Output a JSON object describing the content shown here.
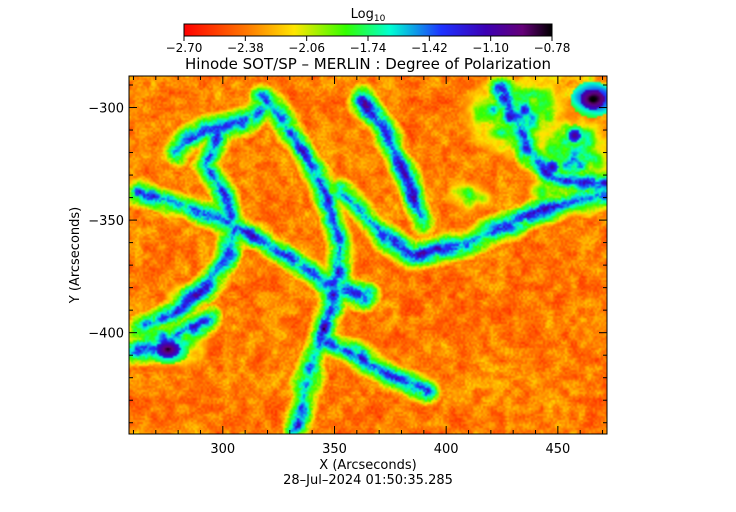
{
  "chart_data": {
    "type": "heatmap",
    "title": "Hinode SOT/SP – MERLIN : Degree of Polarization",
    "colorbar": {
      "label_base": "Log",
      "label_sub": "10",
      "ticks": [
        "−2.70",
        "−2.38",
        "−2.06",
        "−1.74",
        "−1.42",
        "−1.10",
        "−0.78"
      ],
      "range": [
        -2.7,
        -0.78
      ],
      "colormap": "rainbow (red → yellow → green → cyan → blue → purple → black)"
    },
    "xlabel": "X (Arcseconds)",
    "ylabel": "Y (Arcseconds)",
    "x_ticks": [
      300,
      350,
      400,
      450
    ],
    "y_ticks": [
      -300,
      -350,
      -400
    ],
    "x_tick_labels": [
      "300",
      "350",
      "400",
      "450"
    ],
    "y_tick_labels": [
      "−300",
      "−350",
      "−400"
    ],
    "xlim": [
      258,
      472
    ],
    "ylim": [
      -445,
      -286
    ],
    "timestamp": "28–Jul–2024 01:50:35.285",
    "network_lanes": [
      [
        [
          318,
          -295
        ],
        [
          328,
          -309
        ],
        [
          337,
          -322
        ],
        [
          344,
          -334
        ],
        [
          349,
          -346
        ],
        [
          352,
          -360
        ],
        [
          351,
          -376
        ],
        [
          347,
          -392
        ],
        [
          341,
          -409
        ],
        [
          336,
          -425
        ],
        [
          333,
          -442
        ]
      ],
      [
        [
          262,
          -337
        ],
        [
          282,
          -343
        ],
        [
          303,
          -351
        ],
        [
          319,
          -360
        ],
        [
          334,
          -369
        ],
        [
          347,
          -378
        ],
        [
          363,
          -383
        ]
      ],
      [
        [
          262,
          -397
        ],
        [
          277,
          -392
        ],
        [
          290,
          -381
        ],
        [
          300,
          -368
        ],
        [
          305,
          -355
        ],
        [
          301,
          -339
        ],
        [
          292,
          -325
        ],
        [
          297,
          -313
        ]
      ],
      [
        [
          352,
          -337
        ],
        [
          364,
          -348
        ],
        [
          372,
          -357
        ],
        [
          385,
          -365
        ],
        [
          404,
          -361
        ],
        [
          421,
          -355
        ],
        [
          439,
          -346
        ],
        [
          457,
          -341
        ],
        [
          471,
          -339
        ]
      ],
      [
        [
          362,
          -296
        ],
        [
          371,
          -309
        ],
        [
          378,
          -322
        ],
        [
          384,
          -336
        ],
        [
          389,
          -350
        ]
      ],
      [
        [
          258,
          -409
        ],
        [
          269,
          -406
        ],
        [
          281,
          -399
        ],
        [
          293,
          -394
        ]
      ],
      [
        [
          278,
          -319
        ],
        [
          291,
          -310
        ],
        [
          308,
          -306
        ],
        [
          321,
          -299
        ]
      ],
      [
        [
          424,
          -291
        ],
        [
          431,
          -305
        ],
        [
          437,
          -319
        ],
        [
          446,
          -331
        ],
        [
          462,
          -333
        ],
        [
          471,
          -333
        ]
      ],
      [
        [
          346,
          -404
        ],
        [
          360,
          -410
        ],
        [
          377,
          -420
        ],
        [
          391,
          -425
        ]
      ]
    ],
    "active_regions": [
      {
        "center": [
          431,
          -303
        ],
        "radius": [
          22,
          17
        ],
        "level": 0.72
      },
      {
        "center": [
          456,
          -322
        ],
        "radius": [
          16,
          19
        ],
        "level": 0.64
      },
      {
        "center": [
          449,
          -338
        ],
        "radius": [
          13,
          9
        ],
        "level": 0.55
      },
      {
        "center": [
          410,
          -339
        ],
        "radius": [
          11,
          7
        ],
        "level": 0.5
      },
      {
        "center": [
          276,
          -403
        ],
        "radius": [
          17,
          12
        ],
        "level": 0.68
      },
      {
        "center": [
          283,
          -385
        ],
        "radius": [
          11,
          9
        ],
        "level": 0.45
      }
    ],
    "pores": [
      {
        "center": [
          465,
          -296
        ],
        "radius": [
          6,
          5
        ],
        "level": 1.0
      },
      {
        "center": [
          275,
          -407
        ],
        "radius": [
          6,
          4
        ],
        "level": 1.0
      },
      {
        "center": [
          457,
          -312
        ],
        "radius": [
          3,
          3
        ],
        "level": 0.88
      },
      {
        "center": [
          447,
          -326
        ],
        "radius": [
          3,
          3
        ],
        "level": 0.85
      }
    ]
  }
}
